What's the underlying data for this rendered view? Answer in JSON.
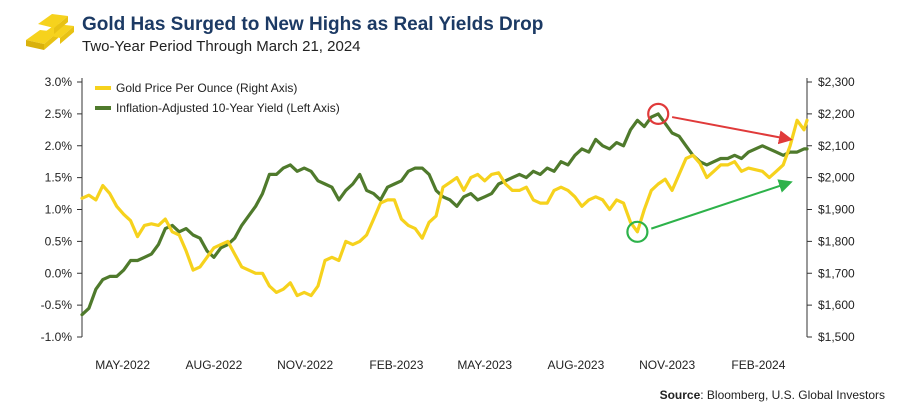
{
  "title": "Gold Has Surged to New Highs as Real Yields Drop",
  "subtitle": "Two-Year Period Through March 21, 2024",
  "source_label": "Source",
  "source_text": ": Bloomberg, U.S. Global Investors",
  "icon": "gold-bars-icon",
  "colors": {
    "gold": "#f6d21d",
    "yield": "#4f7a2c",
    "red_arrow": "#e03a3a",
    "green_arrow": "#2db24a",
    "title": "#1c3a64"
  },
  "chart_data": {
    "type": "line",
    "title": "Gold Has Surged to New Highs as Real Yields Drop",
    "subtitle": "Two-Year Period Through March 21, 2024",
    "x_tick_labels": [
      "MAY-2022",
      "AUG-2022",
      "NOV-2022",
      "FEB-2023",
      "MAY-2023",
      "AUG-2023",
      "NOV-2023",
      "FEB-2024"
    ],
    "x_ticks": [
      "2022-05-01",
      "2022-08-01",
      "2022-11-01",
      "2023-02-01",
      "2023-05-01",
      "2023-08-01",
      "2023-11-01",
      "2024-02-01"
    ],
    "xlim": [
      "2022-03-21",
      "2024-03-21"
    ],
    "left_axis": {
      "ylim": [
        -1.0,
        3.0
      ],
      "ticks": [
        "-1.0%",
        "-0.5%",
        "0.0%",
        "0.5%",
        "1.0%",
        "1.5%",
        "2.0%",
        "2.5%",
        "3.0%"
      ]
    },
    "right_axis": {
      "ylim": [
        1500,
        2300
      ],
      "ticks": [
        "$1,500",
        "$1,600",
        "$1,700",
        "$1,800",
        "$1,900",
        "$2,000",
        "$2,100",
        "$2,200",
        "$2,300"
      ]
    },
    "legend_position": "top-left",
    "series": [
      {
        "name": "Gold Price Per Ounce (Right Axis)",
        "axis": "right",
        "color": "#f6d21d",
        "points": [
          [
            "2022-03-21",
            1935
          ],
          [
            "2022-03-28",
            1945
          ],
          [
            "2022-04-04",
            1930
          ],
          [
            "2022-04-11",
            1975
          ],
          [
            "2022-04-18",
            1950
          ],
          [
            "2022-04-25",
            1910
          ],
          [
            "2022-05-02",
            1885
          ],
          [
            "2022-05-09",
            1865
          ],
          [
            "2022-05-16",
            1815
          ],
          [
            "2022-05-23",
            1850
          ],
          [
            "2022-05-30",
            1855
          ],
          [
            "2022-06-06",
            1850
          ],
          [
            "2022-06-13",
            1870
          ],
          [
            "2022-06-20",
            1830
          ],
          [
            "2022-06-27",
            1820
          ],
          [
            "2022-07-04",
            1770
          ],
          [
            "2022-07-11",
            1710
          ],
          [
            "2022-07-18",
            1720
          ],
          [
            "2022-07-25",
            1750
          ],
          [
            "2022-08-01",
            1780
          ],
          [
            "2022-08-08",
            1790
          ],
          [
            "2022-08-15",
            1800
          ],
          [
            "2022-08-22",
            1760
          ],
          [
            "2022-08-29",
            1720
          ],
          [
            "2022-09-05",
            1710
          ],
          [
            "2022-09-12",
            1700
          ],
          [
            "2022-09-19",
            1700
          ],
          [
            "2022-09-26",
            1660
          ],
          [
            "2022-10-03",
            1640
          ],
          [
            "2022-10-10",
            1650
          ],
          [
            "2022-10-17",
            1670
          ],
          [
            "2022-10-24",
            1630
          ],
          [
            "2022-10-31",
            1640
          ],
          [
            "2022-11-07",
            1630
          ],
          [
            "2022-11-14",
            1660
          ],
          [
            "2022-11-21",
            1740
          ],
          [
            "2022-11-28",
            1750
          ],
          [
            "2022-12-05",
            1740
          ],
          [
            "2022-12-12",
            1800
          ],
          [
            "2022-12-19",
            1790
          ],
          [
            "2022-12-26",
            1800
          ],
          [
            "2023-01-02",
            1820
          ],
          [
            "2023-01-09",
            1870
          ],
          [
            "2023-01-16",
            1920
          ],
          [
            "2023-01-23",
            1930
          ],
          [
            "2023-01-30",
            1930
          ],
          [
            "2023-02-06",
            1870
          ],
          [
            "2023-02-13",
            1850
          ],
          [
            "2023-02-20",
            1840
          ],
          [
            "2023-02-27",
            1810
          ],
          [
            "2023-03-06",
            1860
          ],
          [
            "2023-03-13",
            1880
          ],
          [
            "2023-03-20",
            1970
          ],
          [
            "2023-03-27",
            1985
          ],
          [
            "2023-04-03",
            2000
          ],
          [
            "2023-04-10",
            1960
          ],
          [
            "2023-04-17",
            2000
          ],
          [
            "2023-04-24",
            2010
          ],
          [
            "2023-05-01",
            1990
          ],
          [
            "2023-05-08",
            2010
          ],
          [
            "2023-05-15",
            2015
          ],
          [
            "2023-05-22",
            1980
          ],
          [
            "2023-05-29",
            1960
          ],
          [
            "2023-06-05",
            1960
          ],
          [
            "2023-06-12",
            1970
          ],
          [
            "2023-06-19",
            1930
          ],
          [
            "2023-06-26",
            1920
          ],
          [
            "2023-07-03",
            1920
          ],
          [
            "2023-07-10",
            1960
          ],
          [
            "2023-07-17",
            1970
          ],
          [
            "2023-07-24",
            1960
          ],
          [
            "2023-07-31",
            1940
          ],
          [
            "2023-08-07",
            1910
          ],
          [
            "2023-08-14",
            1930
          ],
          [
            "2023-08-21",
            1940
          ],
          [
            "2023-08-28",
            1930
          ],
          [
            "2023-09-04",
            1900
          ],
          [
            "2023-09-11",
            1930
          ],
          [
            "2023-09-18",
            1920
          ],
          [
            "2023-09-25",
            1860
          ],
          [
            "2023-10-02",
            1830
          ],
          [
            "2023-10-09",
            1900
          ],
          [
            "2023-10-16",
            1960
          ],
          [
            "2023-10-23",
            1980
          ],
          [
            "2023-10-30",
            1995
          ],
          [
            "2023-11-06",
            1960
          ],
          [
            "2023-11-13",
            2010
          ],
          [
            "2023-11-20",
            2060
          ],
          [
            "2023-11-27",
            2070
          ],
          [
            "2023-12-04",
            2045
          ],
          [
            "2023-12-11",
            2000
          ],
          [
            "2023-12-18",
            2020
          ],
          [
            "2023-12-25",
            2040
          ],
          [
            "2024-01-01",
            2040
          ],
          [
            "2024-01-08",
            2050
          ],
          [
            "2024-01-15",
            2020
          ],
          [
            "2024-01-22",
            2030
          ],
          [
            "2024-01-29",
            2025
          ],
          [
            "2024-02-05",
            2020
          ],
          [
            "2024-02-12",
            2000
          ],
          [
            "2024-02-19",
            2020
          ],
          [
            "2024-02-26",
            2040
          ],
          [
            "2024-03-04",
            2100
          ],
          [
            "2024-03-11",
            2180
          ],
          [
            "2024-03-18",
            2150
          ],
          [
            "2024-03-21",
            2180
          ]
        ]
      },
      {
        "name": "Inflation-Adjusted 10-Year Yield (Left Axis)",
        "axis": "left",
        "color": "#4f7a2c",
        "points": [
          [
            "2022-03-21",
            -0.65
          ],
          [
            "2022-03-28",
            -0.55
          ],
          [
            "2022-04-04",
            -0.25
          ],
          [
            "2022-04-11",
            -0.1
          ],
          [
            "2022-04-18",
            -0.05
          ],
          [
            "2022-04-25",
            -0.05
          ],
          [
            "2022-05-02",
            0.05
          ],
          [
            "2022-05-09",
            0.2
          ],
          [
            "2022-05-16",
            0.2
          ],
          [
            "2022-05-23",
            0.25
          ],
          [
            "2022-05-30",
            0.3
          ],
          [
            "2022-06-06",
            0.45
          ],
          [
            "2022-06-13",
            0.7
          ],
          [
            "2022-06-20",
            0.75
          ],
          [
            "2022-06-27",
            0.65
          ],
          [
            "2022-07-04",
            0.7
          ],
          [
            "2022-07-11",
            0.6
          ],
          [
            "2022-07-18",
            0.55
          ],
          [
            "2022-07-25",
            0.35
          ],
          [
            "2022-08-01",
            0.25
          ],
          [
            "2022-08-08",
            0.4
          ],
          [
            "2022-08-15",
            0.45
          ],
          [
            "2022-08-22",
            0.55
          ],
          [
            "2022-08-29",
            0.75
          ],
          [
            "2022-09-05",
            0.9
          ],
          [
            "2022-09-12",
            1.05
          ],
          [
            "2022-09-19",
            1.25
          ],
          [
            "2022-09-26",
            1.55
          ],
          [
            "2022-10-03",
            1.55
          ],
          [
            "2022-10-10",
            1.65
          ],
          [
            "2022-10-17",
            1.7
          ],
          [
            "2022-10-24",
            1.6
          ],
          [
            "2022-10-31",
            1.65
          ],
          [
            "2022-11-07",
            1.6
          ],
          [
            "2022-11-14",
            1.45
          ],
          [
            "2022-11-21",
            1.4
          ],
          [
            "2022-11-28",
            1.35
          ],
          [
            "2022-12-05",
            1.15
          ],
          [
            "2022-12-12",
            1.3
          ],
          [
            "2022-12-19",
            1.4
          ],
          [
            "2022-12-26",
            1.55
          ],
          [
            "2023-01-02",
            1.3
          ],
          [
            "2023-01-09",
            1.25
          ],
          [
            "2023-01-16",
            1.15
          ],
          [
            "2023-01-23",
            1.35
          ],
          [
            "2023-01-30",
            1.4
          ],
          [
            "2023-02-06",
            1.45
          ],
          [
            "2023-02-13",
            1.6
          ],
          [
            "2023-02-20",
            1.65
          ],
          [
            "2023-02-27",
            1.65
          ],
          [
            "2023-03-06",
            1.55
          ],
          [
            "2023-03-13",
            1.3
          ],
          [
            "2023-03-20",
            1.2
          ],
          [
            "2023-03-27",
            1.15
          ],
          [
            "2023-04-03",
            1.05
          ],
          [
            "2023-04-10",
            1.2
          ],
          [
            "2023-04-17",
            1.25
          ],
          [
            "2023-04-24",
            1.15
          ],
          [
            "2023-05-01",
            1.2
          ],
          [
            "2023-05-08",
            1.25
          ],
          [
            "2023-05-15",
            1.4
          ],
          [
            "2023-05-22",
            1.45
          ],
          [
            "2023-05-29",
            1.5
          ],
          [
            "2023-06-05",
            1.55
          ],
          [
            "2023-06-12",
            1.5
          ],
          [
            "2023-06-19",
            1.6
          ],
          [
            "2023-06-26",
            1.55
          ],
          [
            "2023-07-03",
            1.65
          ],
          [
            "2023-07-10",
            1.6
          ],
          [
            "2023-07-17",
            1.75
          ],
          [
            "2023-07-24",
            1.7
          ],
          [
            "2023-07-31",
            1.85
          ],
          [
            "2023-08-07",
            1.95
          ],
          [
            "2023-08-14",
            1.9
          ],
          [
            "2023-08-21",
            2.1
          ],
          [
            "2023-08-28",
            2.0
          ],
          [
            "2023-09-04",
            1.95
          ],
          [
            "2023-09-11",
            2.05
          ],
          [
            "2023-09-18",
            2.0
          ],
          [
            "2023-09-25",
            2.25
          ],
          [
            "2023-10-02",
            2.4
          ],
          [
            "2023-10-09",
            2.3
          ],
          [
            "2023-10-16",
            2.45
          ],
          [
            "2023-10-23",
            2.5
          ],
          [
            "2023-10-30",
            2.35
          ],
          [
            "2023-11-06",
            2.2
          ],
          [
            "2023-11-13",
            2.15
          ],
          [
            "2023-11-20",
            2.0
          ],
          [
            "2023-11-27",
            1.85
          ],
          [
            "2023-12-04",
            1.75
          ],
          [
            "2023-12-11",
            1.7
          ],
          [
            "2023-12-18",
            1.75
          ],
          [
            "2023-12-25",
            1.8
          ],
          [
            "2024-01-01",
            1.8
          ],
          [
            "2024-01-08",
            1.85
          ],
          [
            "2024-01-15",
            1.8
          ],
          [
            "2024-01-22",
            1.9
          ],
          [
            "2024-01-29",
            1.95
          ],
          [
            "2024-02-05",
            2.0
          ],
          [
            "2024-02-12",
            1.95
          ],
          [
            "2024-02-19",
            1.9
          ],
          [
            "2024-02-26",
            1.85
          ],
          [
            "2024-03-04",
            1.9
          ],
          [
            "2024-03-11",
            1.9
          ],
          [
            "2024-03-18",
            1.95
          ],
          [
            "2024-03-21",
            1.95
          ]
        ]
      }
    ],
    "annotations": [
      {
        "type": "circle",
        "series": "Inflation-Adjusted 10-Year Yield (Left Axis)",
        "at": "2023-10-23",
        "value": 2.5,
        "color": "#e03a3a"
      },
      {
        "type": "arrow",
        "from": [
          "2023-11-06",
          2.45
        ],
        "to": [
          "2024-03-04",
          2.1
        ],
        "axis": "left",
        "color": "#e03a3a"
      },
      {
        "type": "circle",
        "series": "Gold Price Per Ounce (Right Axis)",
        "at": "2023-10-02",
        "value": 1830,
        "color": "#2db24a"
      },
      {
        "type": "arrow",
        "from": [
          "2023-10-16",
          1840
        ],
        "to": [
          "2024-03-04",
          1985
        ],
        "axis": "right",
        "color": "#2db24a"
      }
    ]
  }
}
